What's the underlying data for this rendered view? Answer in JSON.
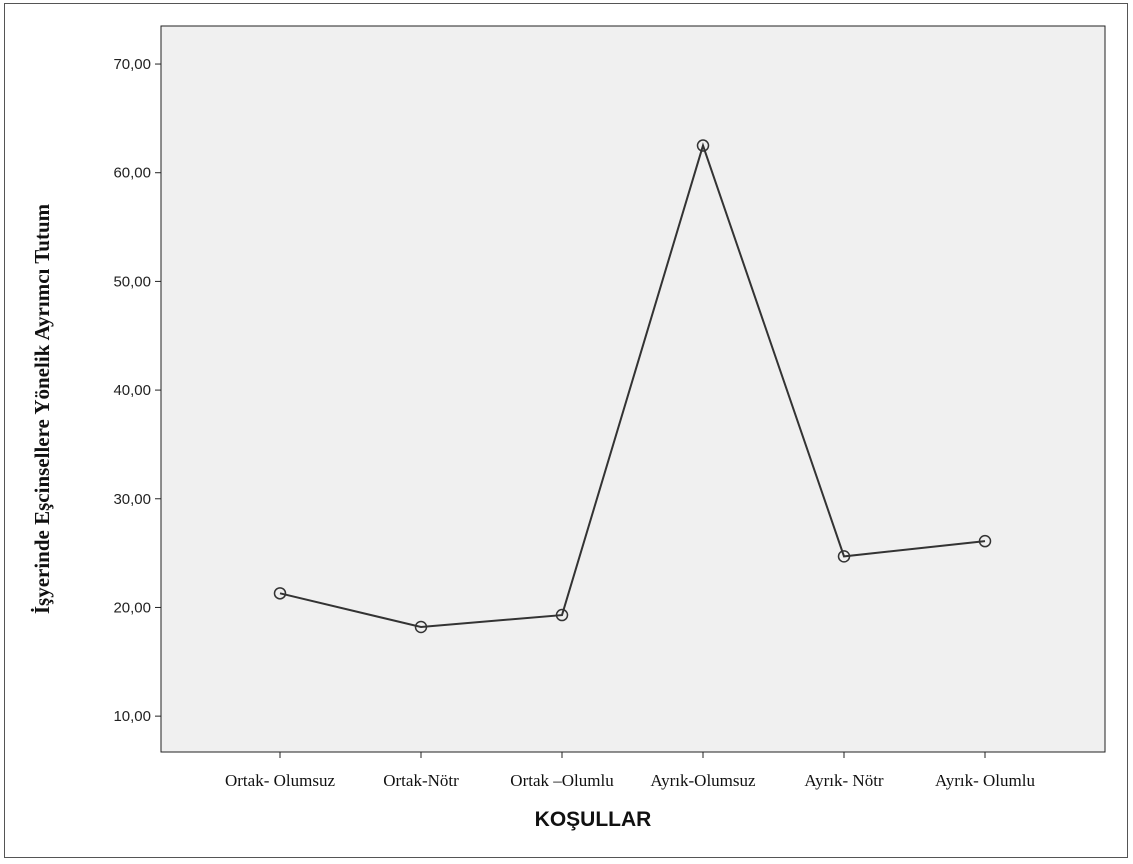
{
  "chart_data": {
    "type": "line",
    "title": "",
    "xlabel": "KOŞULLAR",
    "ylabel": "İşyerinde Eşcinsellere Yönelik Ayrımcı Tutum",
    "categories": [
      "Ortak- Olumsuz",
      "Ortak-Nötr",
      "Ortak –Olumlu",
      "Ayrık-Olumsuz",
      "Ayrık- Nötr",
      "Ayrık- Olumlu"
    ],
    "series": [
      {
        "values": [
          21.3,
          18.2,
          19.3,
          62.5,
          24.7,
          26.1
        ]
      }
    ],
    "yticks": [
      "10,00",
      "20,00",
      "30,00",
      "40,00",
      "50,00",
      "60,00",
      "70,00"
    ],
    "ylim": [
      6.7,
      73.5
    ],
    "grid": false,
    "plot_background": "#f0f0f0",
    "line_color": "#333333",
    "marker": "open-circle"
  }
}
